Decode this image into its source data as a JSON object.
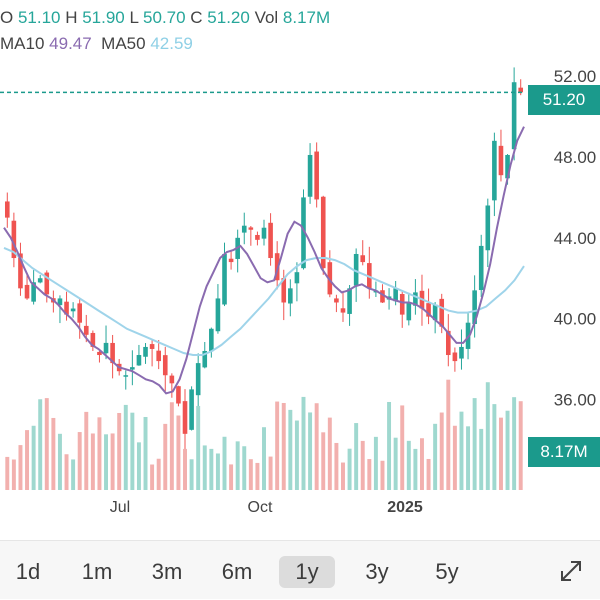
{
  "header": {
    "ohlc": [
      {
        "key": "O",
        "value": "51.10"
      },
      {
        "key": "H",
        "value": "51.90"
      },
      {
        "key": "L",
        "value": "50.70"
      },
      {
        "key": "C",
        "value": "51.20"
      },
      {
        "key": "Vol",
        "value": "8.17M"
      }
    ],
    "ma10_label": "MA10",
    "ma10_value": "49.47",
    "ma50_label": "MA50",
    "ma50_value": "42.59"
  },
  "chart_data": {
    "type": "candlestick",
    "y_ticks": [
      "52.00",
      "48.00",
      "44.00",
      "40.00",
      "36.00"
    ],
    "y_range": [
      33.5,
      52.8
    ],
    "x_labels": [
      "Jul",
      "Oct",
      "2025"
    ],
    "last_price": "51.20",
    "last_volume": "8.17M",
    "colors": {
      "up": "#26a69a",
      "down": "#ef5350",
      "ma10": "#8a6bb0",
      "ma50": "#9fd4ea"
    },
    "closes": [
      45.0,
      43.0,
      41.5,
      41.0,
      41.8,
      42.0,
      41.2,
      40.8,
      41.0,
      40.2,
      40.5,
      39.8,
      39.2,
      38.6,
      38.2,
      38.8,
      37.8,
      37.4,
      37.2,
      37.6,
      38.2,
      38.6,
      38.5,
      37.9,
      37.2,
      36.8,
      35.8,
      34.3,
      36.5,
      37.8,
      38.4,
      39.5,
      41.0,
      43.2,
      42.8,
      44.0,
      44.6,
      44.4,
      43.9,
      44.5,
      43.0,
      41.9,
      40.8,
      41.5,
      42.3,
      46.0,
      48.1,
      45.9,
      42.5,
      41.2,
      40.8,
      40.3,
      41.5,
      43.2,
      42.8,
      41.5,
      41.4,
      40.8,
      41.1,
      41.5,
      40.2,
      40.8,
      41.3,
      40.5,
      40.1,
      40.7,
      39.6,
      38.2,
      37.9,
      38.6,
      39.8,
      41.4,
      43.6,
      45.6,
      48.8,
      47.1,
      48.1,
      51.7,
      51.2
    ],
    "ma10": [
      44.5,
      44.0,
      43.3,
      42.5,
      41.8,
      41.5,
      41.2,
      41.0,
      40.7,
      40.3,
      40.0,
      39.6,
      39.1,
      38.7,
      38.5,
      38.2,
      37.9,
      37.6,
      37.5,
      37.4,
      37.2,
      37.0,
      36.9,
      36.7,
      36.3,
      36.4,
      37.0,
      38.0,
      39.3,
      40.6,
      41.6,
      42.3,
      43.0,
      43.3,
      43.4,
      43.6,
      43.2,
      42.6,
      42.0,
      41.8,
      41.9,
      43.0,
      44.2,
      44.8,
      44.6,
      44.0,
      43.3,
      42.5,
      42.0,
      41.6,
      41.3,
      41.4,
      41.6,
      41.7,
      41.5,
      41.4,
      41.2,
      41.0,
      40.9,
      40.8,
      40.8,
      40.7,
      40.5,
      40.2,
      39.9,
      39.6,
      39.2,
      38.8,
      38.8,
      39.2,
      40.1,
      41.3,
      42.7,
      44.5,
      46.1,
      47.6,
      48.8,
      49.5
    ],
    "ma50": [
      43.5,
      43.3,
      42.9,
      42.5,
      42.2,
      41.9,
      41.6,
      41.3,
      41.0,
      40.7,
      40.4,
      40.1,
      39.8,
      39.5,
      39.3,
      39.1,
      38.9,
      38.7,
      38.5,
      38.3,
      38.2,
      38.2,
      38.4,
      38.7,
      39.1,
      39.5,
      40.0,
      40.5,
      41.0,
      41.6,
      42.2,
      42.6,
      42.9,
      43.0,
      43.0,
      42.9,
      42.7,
      42.4,
      42.2,
      42.0,
      41.8,
      41.6,
      41.4,
      41.2,
      41.0,
      40.8,
      40.6,
      40.4,
      40.3,
      40.3,
      40.4,
      40.6,
      41.0,
      41.4,
      41.9,
      42.6
    ]
  },
  "timeframes": [
    {
      "label": "1d",
      "active": false
    },
    {
      "label": "1m",
      "active": false
    },
    {
      "label": "3m",
      "active": false
    },
    {
      "label": "6m",
      "active": false
    },
    {
      "label": "1y",
      "active": true
    },
    {
      "label": "3y",
      "active": false
    },
    {
      "label": "5y",
      "active": false
    }
  ],
  "icons": {
    "expand": "expand-diagonal-icon"
  }
}
